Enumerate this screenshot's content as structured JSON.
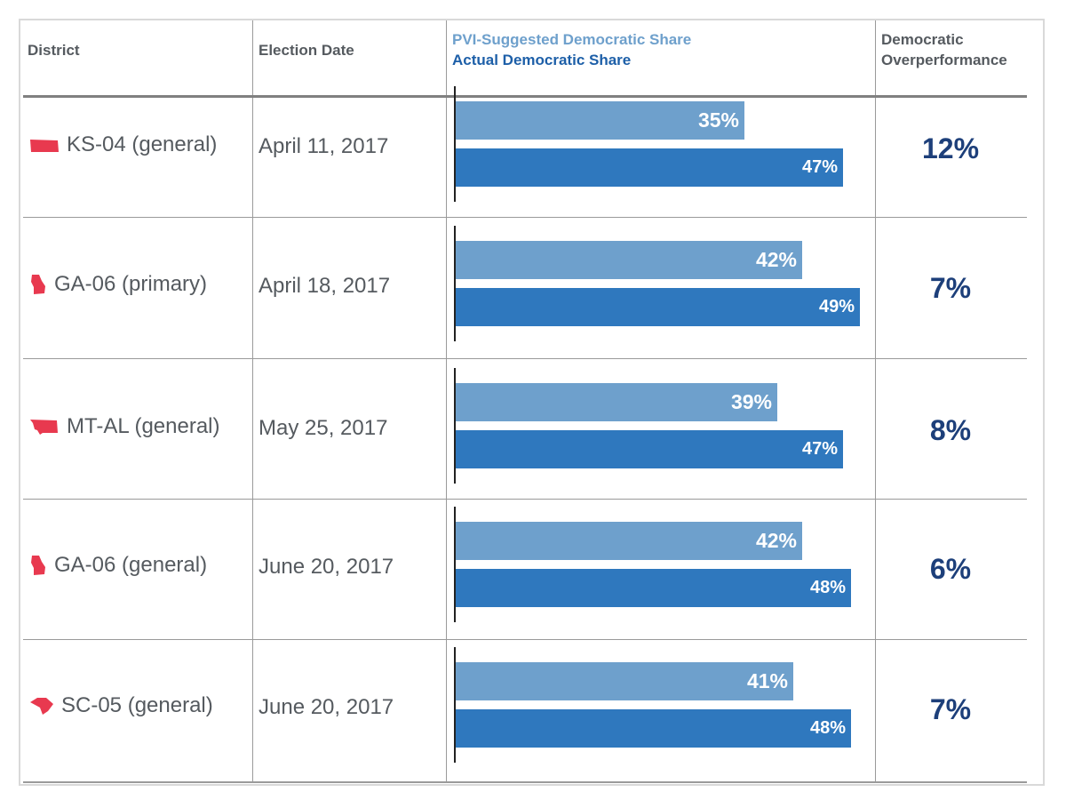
{
  "colors": {
    "pvi": "#6ea0cc",
    "actual": "#2f78be",
    "overperformance": "#1d3f7a",
    "state_icon": "#e8394f",
    "header_pvi": "#6ea0cc",
    "header_actual": "#1d5fa8"
  },
  "header": {
    "district": "District",
    "election_date": "Election Date",
    "pvi_legend": "PVI-Suggested Democratic Share",
    "actual_legend": "Actual Democratic Share",
    "overperformance_line1": "Democratic",
    "overperformance_line2": "Overperformance"
  },
  "rows": [
    {
      "district": "KS-04 (general)",
      "icon": "kansas-state-icon",
      "date": "April 11, 2017",
      "pvi_label": "35%",
      "actual_label": "47%",
      "overperformance": "12%"
    },
    {
      "district": "GA-06 (primary)",
      "icon": "georgia-state-icon",
      "date": "April 18, 2017",
      "pvi_label": "42%",
      "actual_label": "49%",
      "overperformance": "7%"
    },
    {
      "district": "MT-AL (general)",
      "icon": "montana-state-icon",
      "date": "May 25, 2017",
      "pvi_label": "39%",
      "actual_label": "47%",
      "overperformance": "8%"
    },
    {
      "district": "GA-06 (general)",
      "icon": "georgia-state-icon",
      "date": "June 20, 2017",
      "pvi_label": "42%",
      "actual_label": "48%",
      "overperformance": "6%"
    },
    {
      "district": "SC-05 (general)",
      "icon": "south-carolina-state-icon",
      "date": "June 20, 2017",
      "pvi_label": "41%",
      "actual_label": "48%",
      "overperformance": "7%"
    }
  ],
  "chart_data": {
    "type": "bar",
    "orientation": "horizontal",
    "categories": [
      "KS-04 (general)",
      "GA-06 (primary)",
      "MT-AL (general)",
      "GA-06 (general)",
      "SC-05 (general)"
    ],
    "series": [
      {
        "name": "PVI-Suggested Democratic Share",
        "values": [
          35,
          42,
          39,
          42,
          41
        ]
      },
      {
        "name": "Actual Democratic Share",
        "values": [
          47,
          49,
          47,
          48,
          48
        ]
      }
    ],
    "grid": false,
    "legend_placement": "top"
  }
}
